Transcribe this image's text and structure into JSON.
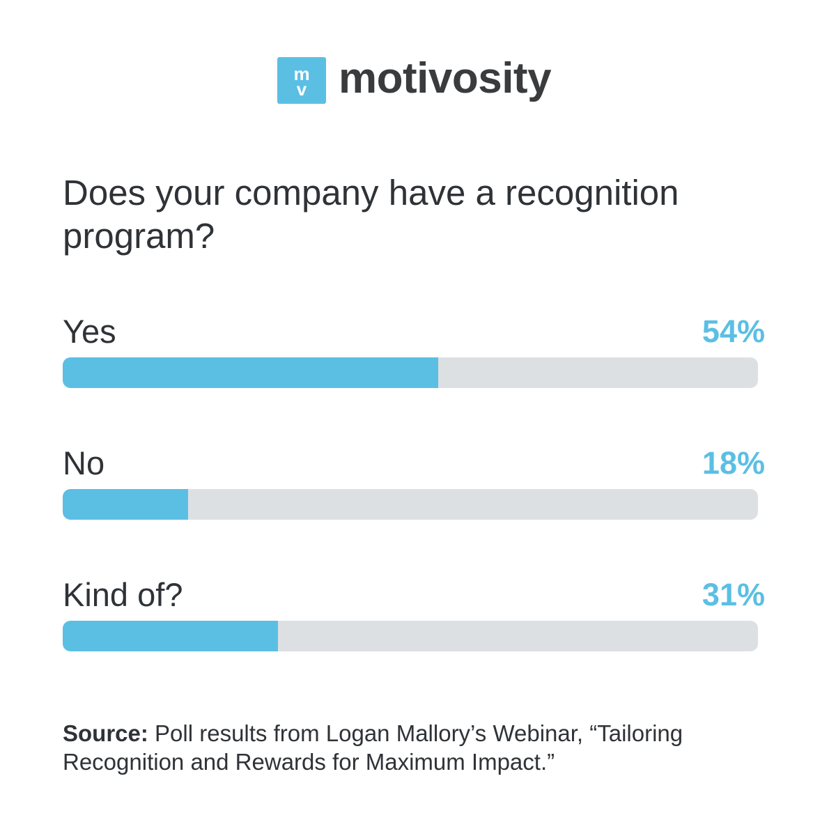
{
  "logo": {
    "mark_text_top": "m",
    "mark_text_bottom": "v",
    "wordmark": "motivosity",
    "icon": "motivosity-logo-icon"
  },
  "colors": {
    "accent": "#5bbfe4",
    "track": "#dde0e3",
    "text": "#2f3236"
  },
  "chart_data": {
    "type": "bar",
    "orientation": "horizontal",
    "title": "Does your company have a recognition program?",
    "categories": [
      "Yes",
      "No",
      "Kind of?"
    ],
    "values": [
      54,
      18,
      31
    ],
    "value_labels": [
      "54%",
      "18%",
      "31%"
    ],
    "xlim": [
      0,
      100
    ],
    "grid": false
  },
  "source": {
    "label": "Source:",
    "text": " Poll results from Logan Mallory’s Webinar, “Tailoring Recognition and Rewards for Maximum Impact.”"
  }
}
